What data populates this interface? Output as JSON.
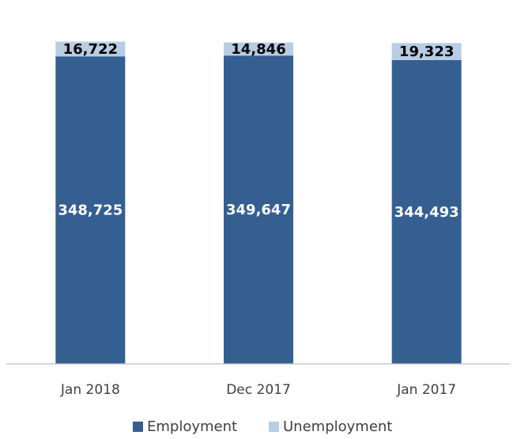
{
  "chart_data": {
    "type": "bar",
    "stacked": true,
    "title": "",
    "xlabel": "",
    "ylabel": "",
    "categories": [
      "Jan 2018",
      "Dec 2017",
      "Jan 2017"
    ],
    "series": [
      {
        "name": "Employment",
        "color": "#355f91",
        "label_color": "#ffffff",
        "values": [
          348725,
          349647,
          344493
        ],
        "labels": [
          "348,725",
          "349,647",
          "344,493"
        ]
      },
      {
        "name": "Unemployment",
        "color": "#b8cce4",
        "label_color": "#000000",
        "values": [
          16722,
          14846,
          19323
        ],
        "labels": [
          "16,722",
          "14,846",
          "19,323"
        ]
      }
    ],
    "ylim": [
      0,
      366000
    ],
    "grid": false,
    "axis_color": "#bfbfbf",
    "legend": "bottom"
  }
}
